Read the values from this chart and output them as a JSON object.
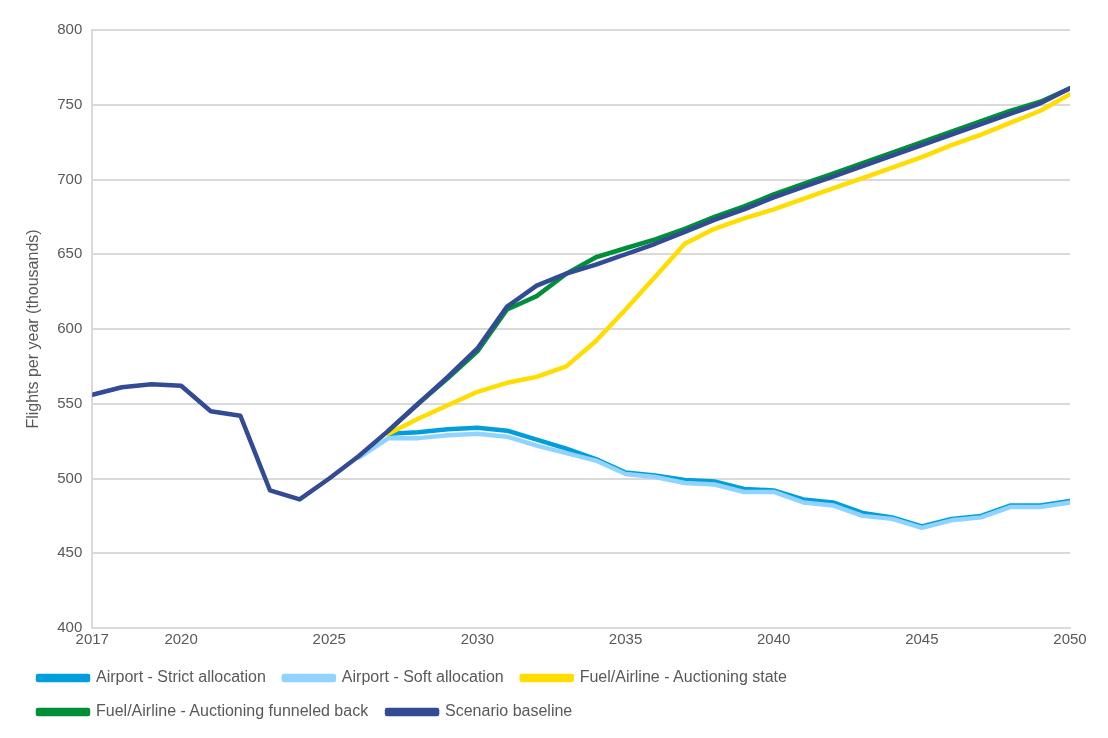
{
  "chart_data": {
    "type": "line",
    "ylabel": "Flights per year (thousands)",
    "x": [
      2017,
      2018,
      2019,
      2020,
      2021,
      2022,
      2023,
      2024,
      2025,
      2026,
      2027,
      2028,
      2029,
      2030,
      2031,
      2032,
      2033,
      2034,
      2035,
      2036,
      2037,
      2038,
      2039,
      2040,
      2041,
      2042,
      2043,
      2044,
      2045,
      2046,
      2047,
      2048,
      2049,
      2050
    ],
    "xlim": [
      2017,
      2050
    ],
    "xticks": [
      2017,
      2020,
      2025,
      2030,
      2035,
      2040,
      2045,
      2050
    ],
    "ylim": [
      400,
      800
    ],
    "yticks": [
      400,
      450,
      500,
      550,
      600,
      650,
      700,
      750,
      800
    ],
    "grid": "y",
    "legend": "bottom",
    "marker": "none",
    "line_style": "solid",
    "series": [
      {
        "name": "Airport - Strict allocation",
        "color": "#009fdb",
        "values": [
          null,
          null,
          null,
          null,
          null,
          null,
          null,
          null,
          null,
          null,
          530,
          531,
          533,
          534,
          532,
          526,
          520,
          513,
          504,
          502,
          499,
          498,
          493,
          492,
          486,
          484,
          477,
          474,
          468,
          473,
          475,
          482,
          482,
          485
        ]
      },
      {
        "name": "Airport - Soft allocation",
        "color": "#8fd3fe",
        "values": [
          null,
          null,
          null,
          null,
          null,
          null,
          null,
          null,
          null,
          514,
          527,
          527,
          529,
          530,
          528,
          522,
          517,
          512,
          503,
          501,
          497,
          496,
          491,
          491,
          484,
          482,
          475,
          473,
          467,
          472,
          474,
          481,
          481,
          484
        ]
      },
      {
        "name": "Fuel/Airline - Auctioning state",
        "color": "#ffdd00",
        "values": [
          null,
          null,
          null,
          null,
          null,
          null,
          null,
          null,
          null,
          null,
          530,
          540,
          549,
          558,
          564,
          568,
          575,
          592,
          613,
          635,
          657,
          667,
          674,
          680,
          687,
          694,
          701,
          708,
          715,
          723,
          730,
          738,
          746,
          757
        ]
      },
      {
        "name": "Fuel/Airline - Auctioning funneled back",
        "color": "#008f39",
        "values": [
          null,
          null,
          null,
          null,
          null,
          null,
          null,
          null,
          null,
          null,
          532,
          550,
          567,
          585,
          613,
          622,
          637,
          648,
          654,
          660,
          667,
          675,
          682,
          690,
          697,
          704,
          711,
          718,
          725,
          732,
          739,
          746,
          752,
          761
        ]
      },
      {
        "name": "Scenario baseline",
        "color": "#334a94",
        "values": [
          556,
          561,
          563,
          562,
          545,
          542,
          492,
          486,
          500,
          515,
          532,
          550,
          568,
          587,
          615,
          629,
          637,
          643,
          650,
          657,
          665,
          673,
          680,
          688,
          695,
          702,
          709,
          716,
          723,
          730,
          737,
          744,
          751,
          761
        ]
      }
    ]
  }
}
